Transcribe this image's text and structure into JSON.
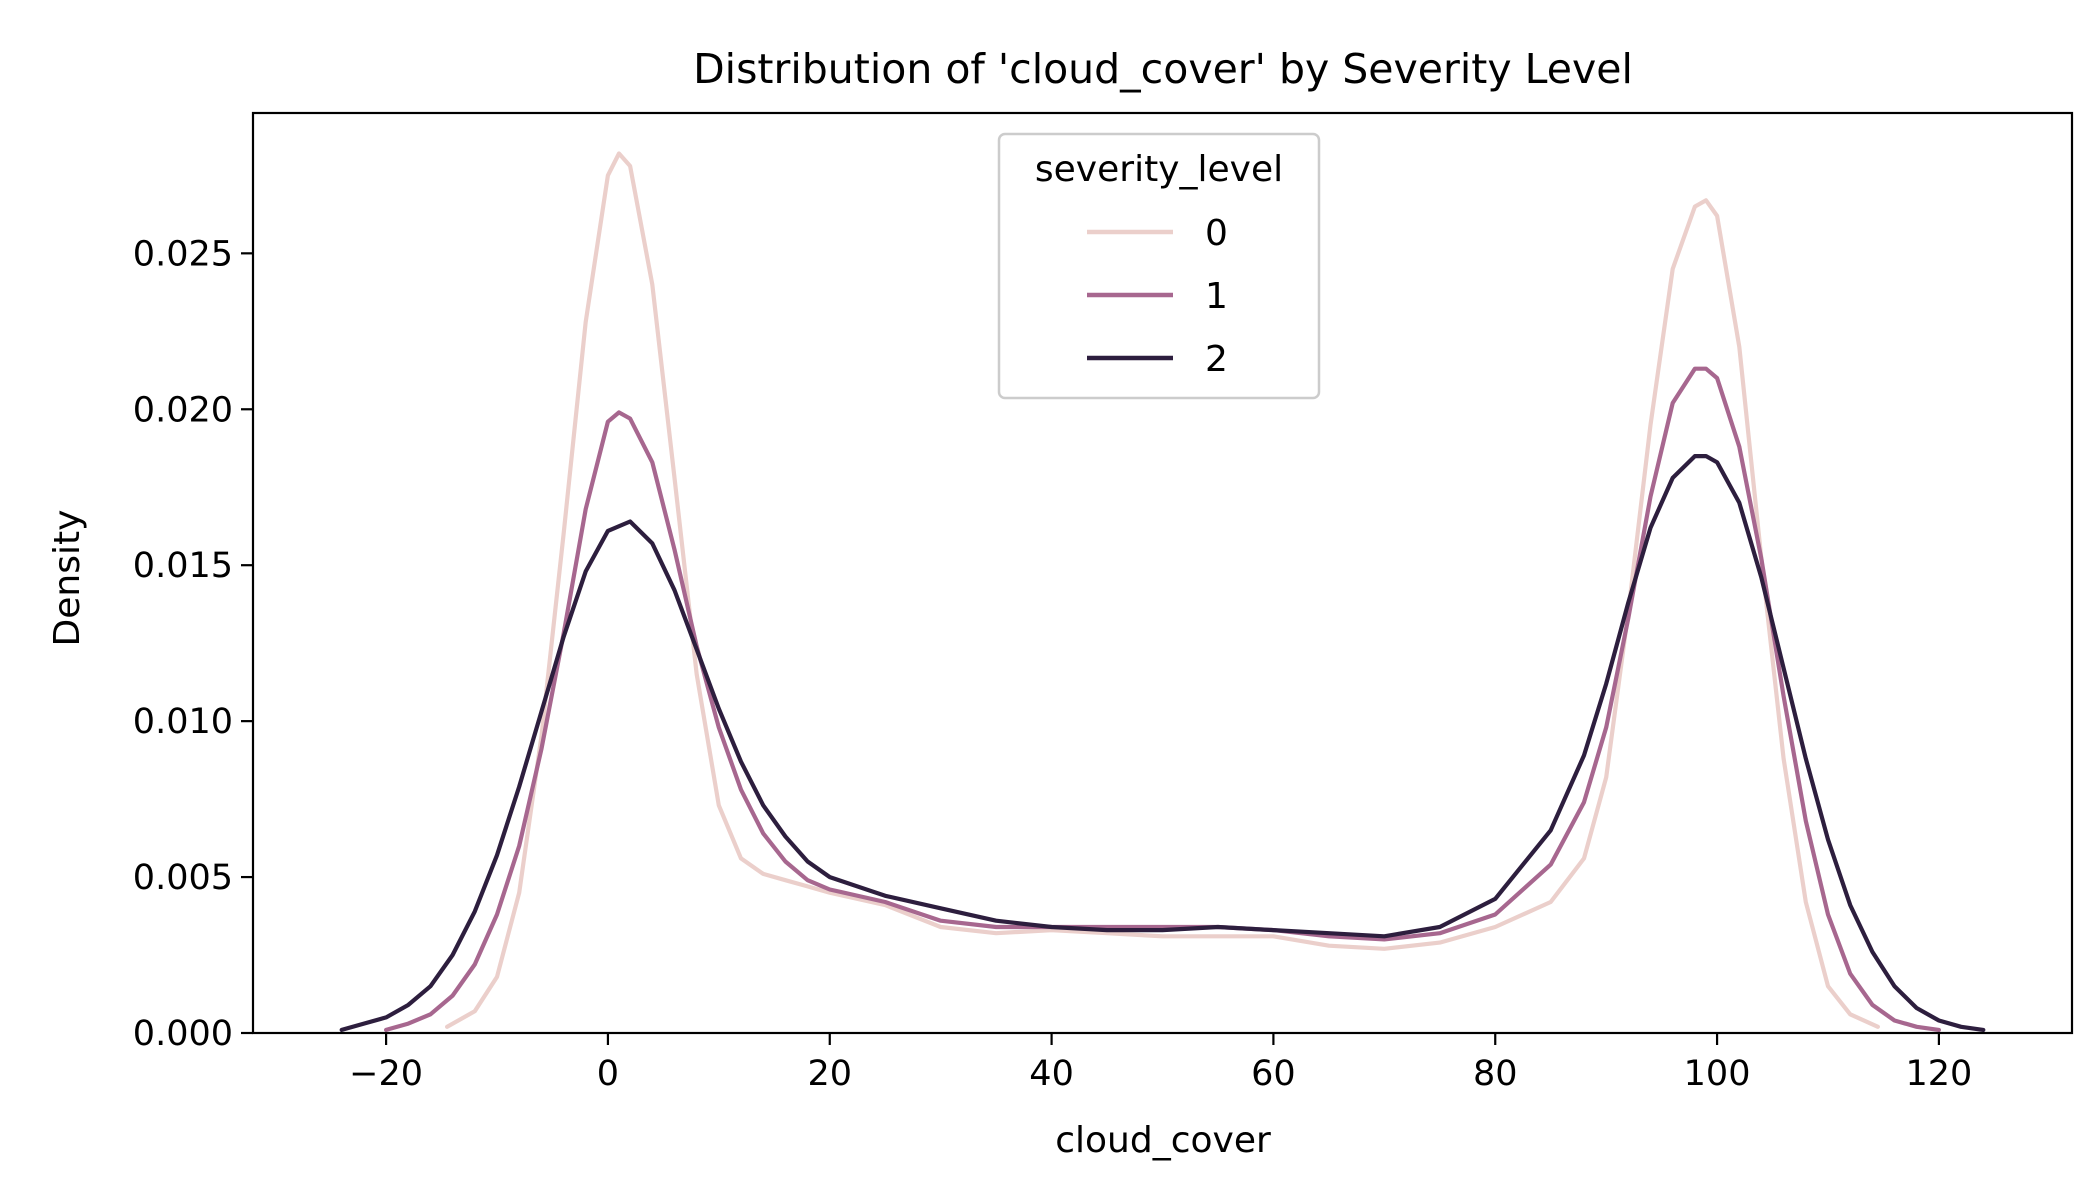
{
  "chart_data": {
    "type": "line",
    "title": "Distribution of 'cloud_cover' by Severity Level",
    "xlabel": "cloud_cover",
    "ylabel": "Density",
    "xlim": [
      -32,
      132
    ],
    "ylim": [
      0,
      0.0295
    ],
    "x_ticks": [
      -20,
      0,
      20,
      40,
      60,
      80,
      100,
      120
    ],
    "x_tick_labels": [
      "−20",
      "0",
      "20",
      "40",
      "60",
      "80",
      "100",
      "120"
    ],
    "y_ticks": [
      0,
      0.005,
      0.01,
      0.015,
      0.02,
      0.025
    ],
    "y_tick_labels": [
      "0.000",
      "0.005",
      "0.010",
      "0.015",
      "0.020",
      "0.025"
    ],
    "grid": false,
    "legend": {
      "title": "severity_level",
      "placement": "upper center"
    },
    "series": [
      {
        "name": "0",
        "color": "#ebcfcb",
        "x": [
          -14.5,
          -12,
          -10,
          -8,
          -6,
          -4,
          -2,
          0,
          1,
          2,
          4,
          6,
          8,
          10,
          12,
          14,
          16,
          18,
          20,
          25,
          30,
          35,
          40,
          45,
          50,
          55,
          60,
          65,
          70,
          75,
          80,
          85,
          88,
          90,
          92,
          94,
          96,
          98,
          99,
          100,
          102,
          104,
          106,
          108,
          110,
          112,
          114.5
        ],
        "y": [
          0.0002,
          0.0007,
          0.0018,
          0.0045,
          0.0095,
          0.016,
          0.0228,
          0.0275,
          0.0282,
          0.0278,
          0.024,
          0.0178,
          0.0115,
          0.0073,
          0.0056,
          0.0051,
          0.0049,
          0.0047,
          0.0045,
          0.0041,
          0.0034,
          0.0032,
          0.0033,
          0.0032,
          0.0031,
          0.0031,
          0.0031,
          0.0028,
          0.0027,
          0.0029,
          0.0034,
          0.0042,
          0.0056,
          0.0082,
          0.0135,
          0.0195,
          0.0245,
          0.0265,
          0.0267,
          0.0262,
          0.022,
          0.0152,
          0.0088,
          0.0042,
          0.0015,
          0.0006,
          0.0002
        ]
      },
      {
        "name": "1",
        "color": "#a7678f",
        "x": [
          -20,
          -18,
          -16,
          -14,
          -12,
          -10,
          -8,
          -6,
          -4,
          -2,
          0,
          1,
          2,
          4,
          6,
          8,
          10,
          12,
          14,
          16,
          18,
          20,
          25,
          30,
          35,
          40,
          45,
          50,
          55,
          60,
          65,
          70,
          75,
          80,
          85,
          88,
          90,
          92,
          94,
          96,
          98,
          99,
          100,
          102,
          104,
          106,
          108,
          110,
          112,
          114,
          116,
          118,
          120
        ],
        "y": [
          0.0001,
          0.0003,
          0.0006,
          0.0012,
          0.0022,
          0.0038,
          0.006,
          0.0091,
          0.0128,
          0.0168,
          0.0196,
          0.0199,
          0.0197,
          0.0183,
          0.0155,
          0.0124,
          0.0098,
          0.0078,
          0.0064,
          0.0055,
          0.0049,
          0.0046,
          0.0042,
          0.0036,
          0.0034,
          0.0034,
          0.0034,
          0.0034,
          0.0034,
          0.0033,
          0.0031,
          0.003,
          0.0032,
          0.0038,
          0.0054,
          0.0074,
          0.0098,
          0.0133,
          0.0172,
          0.0202,
          0.0213,
          0.0213,
          0.021,
          0.0188,
          0.0152,
          0.0108,
          0.0068,
          0.0038,
          0.0019,
          0.0009,
          0.0004,
          0.0002,
          0.0001
        ]
      },
      {
        "name": "2",
        "color": "#2d1e3e",
        "x": [
          -24,
          -22,
          -20,
          -18,
          -16,
          -14,
          -12,
          -10,
          -8,
          -6,
          -4,
          -2,
          0,
          2,
          4,
          6,
          8,
          10,
          12,
          14,
          16,
          18,
          20,
          25,
          30,
          35,
          40,
          45,
          50,
          55,
          60,
          65,
          70,
          75,
          80,
          85,
          88,
          90,
          92,
          94,
          96,
          98,
          99,
          100,
          102,
          104,
          106,
          108,
          110,
          112,
          114,
          116,
          118,
          120,
          122,
          124
        ],
        "y": [
          0.0001,
          0.0003,
          0.0005,
          0.0009,
          0.0015,
          0.0025,
          0.0039,
          0.0057,
          0.0079,
          0.0103,
          0.0127,
          0.0148,
          0.0161,
          0.0164,
          0.0157,
          0.0142,
          0.0123,
          0.0104,
          0.0087,
          0.0073,
          0.0063,
          0.0055,
          0.005,
          0.0044,
          0.004,
          0.0036,
          0.0034,
          0.0033,
          0.0033,
          0.0034,
          0.0033,
          0.0032,
          0.0031,
          0.0034,
          0.0043,
          0.0065,
          0.0089,
          0.0112,
          0.0138,
          0.0162,
          0.0178,
          0.0185,
          0.0185,
          0.0183,
          0.017,
          0.0146,
          0.0117,
          0.0088,
          0.0062,
          0.0041,
          0.0026,
          0.0015,
          0.0008,
          0.0004,
          0.0002,
          0.0001
        ]
      }
    ]
  }
}
